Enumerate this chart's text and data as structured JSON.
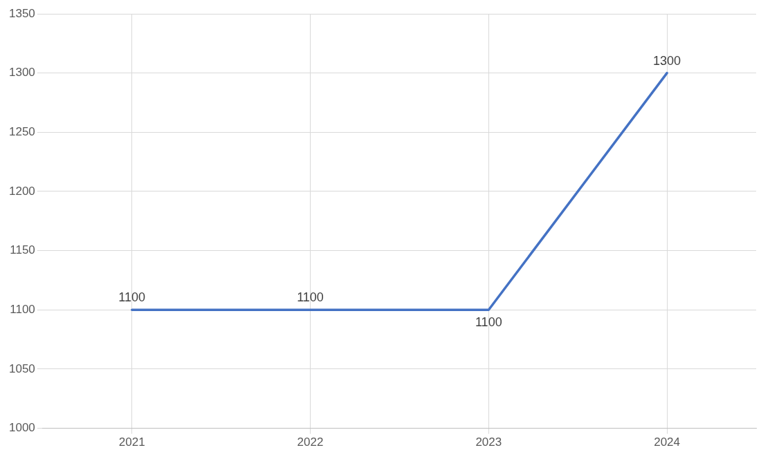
{
  "chart_data": {
    "type": "line",
    "categories": [
      "2021",
      "2022",
      "2023",
      "2024"
    ],
    "series": [
      {
        "color": "#4472c4",
        "values": [
          1100,
          1100,
          1100,
          1300
        ]
      }
    ],
    "ylim": [
      1000,
      1350
    ],
    "yticks": [
      1000,
      1050,
      1100,
      1150,
      1200,
      1250,
      1300,
      1350
    ],
    "grid": true,
    "data_labels": true,
    "marker": "none",
    "line_style": "solid"
  }
}
